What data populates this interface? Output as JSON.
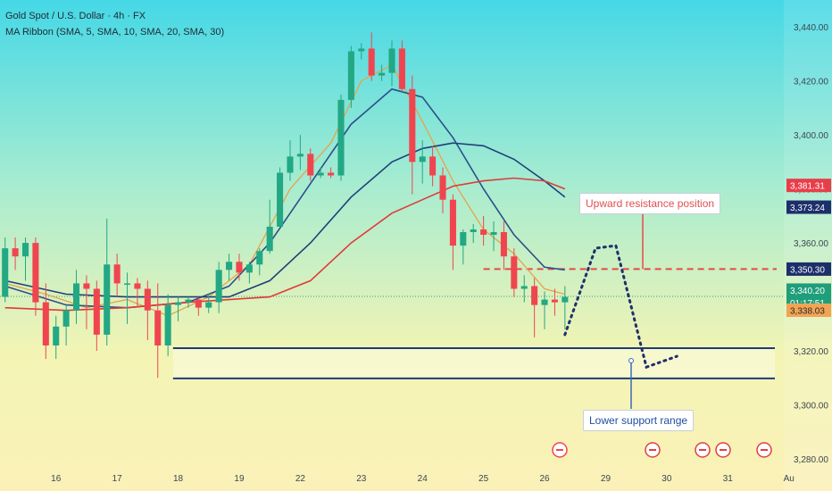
{
  "header": {
    "title": "Gold Spot / U.S. Dollar · 4h · FX",
    "indicator": "MA Ribbon (SMA, 5, SMA, 10, SMA, 20, SMA, 30)"
  },
  "annotations": {
    "resistance": "Upward resistance position",
    "support": "Lower support range"
  },
  "colors": {
    "up": "#22a884",
    "down": "#f0454f",
    "ma5": "#e7a24a",
    "ma10": "#2a4f8a",
    "ma20": "#1f3f7a",
    "ma30": "#e03a3a",
    "zone": "#1e3c78",
    "dashed": "#e84848",
    "path": "#1f2f6a"
  },
  "chart_data": {
    "type": "candlestick",
    "ylim": [
      3278,
      3450
    ],
    "y_ticks": [
      "3,440.00",
      "3,420.00",
      "3,400.00",
      "3,380.00",
      "3,360.00",
      "3,340.00",
      "3,320.00",
      "3,300.00",
      "3,280.00"
    ],
    "y_tick_values": [
      3440,
      3420,
      3400,
      3380,
      3360,
      3340,
      3320,
      3300,
      3280
    ],
    "x_labels": [
      {
        "label": "16",
        "i": 5
      },
      {
        "label": "17",
        "i": 11
      },
      {
        "label": "18",
        "i": 17
      },
      {
        "label": "19",
        "i": 23
      },
      {
        "label": "22",
        "i": 29
      },
      {
        "label": "23",
        "i": 35
      },
      {
        "label": "24",
        "i": 41
      },
      {
        "label": "25",
        "i": 47
      },
      {
        "label": "26",
        "i": 53
      },
      {
        "label": "29",
        "i": 59
      },
      {
        "label": "30",
        "i": 65
      },
      {
        "label": "31",
        "i": 71
      },
      {
        "label": "Au",
        "i": 77
      }
    ],
    "x_range": [
      -0.5,
      76.5
    ],
    "candles": [
      [
        3340,
        3362,
        3338,
        3358
      ],
      [
        3358,
        3362,
        3350,
        3355
      ],
      [
        3355,
        3362,
        3346,
        3360
      ],
      [
        3360,
        3362,
        3333,
        3338
      ],
      [
        3338,
        3345,
        3317,
        3322
      ],
      [
        3322,
        3333,
        3317,
        3329
      ],
      [
        3329,
        3337,
        3322,
        3335
      ],
      [
        3335,
        3350,
        3330,
        3345
      ],
      [
        3345,
        3348,
        3328,
        3343
      ],
      [
        3343,
        3346,
        3320,
        3326
      ],
      [
        3326,
        3369,
        3322,
        3352
      ],
      [
        3352,
        3356,
        3340,
        3345
      ],
      [
        3345,
        3349,
        3330,
        3345
      ],
      [
        3345,
        3347,
        3336,
        3343
      ],
      [
        3343,
        3346,
        3324,
        3335
      ],
      [
        3335,
        3345,
        3310,
        3322
      ],
      [
        3322,
        3341,
        3318,
        3337
      ],
      [
        3337,
        3340,
        3331,
        3338
      ],
      [
        3338,
        3340,
        3336,
        3339
      ],
      [
        3339,
        3340,
        3333,
        3336
      ],
      [
        3336,
        3341,
        3334,
        3338
      ],
      [
        3338,
        3353,
        3334,
        3350
      ],
      [
        3350,
        3356,
        3346,
        3353
      ],
      [
        3353,
        3356,
        3346,
        3349
      ],
      [
        3349,
        3353,
        3345,
        3352
      ],
      [
        3352,
        3358,
        3348,
        3357
      ],
      [
        3357,
        3376,
        3356,
        3366
      ],
      [
        3366,
        3388,
        3366,
        3386
      ],
      [
        3386,
        3398,
        3383,
        3392
      ],
      [
        3392,
        3400,
        3387,
        3393
      ],
      [
        3393,
        3395,
        3383,
        3385
      ],
      [
        3385,
        3388,
        3384,
        3386
      ],
      [
        3386,
        3388,
        3384,
        3385
      ],
      [
        3385,
        3415,
        3383,
        3413
      ],
      [
        3413,
        3433,
        3410,
        3431
      ],
      [
        3431,
        3434,
        3428,
        3432
      ],
      [
        3432,
        3438,
        3420,
        3422
      ],
      [
        3422,
        3426,
        3420,
        3423
      ],
      [
        3423,
        3435,
        3418,
        3432
      ],
      [
        3432,
        3435,
        3416,
        3417
      ],
      [
        3417,
        3422,
        3378,
        3390
      ],
      [
        3390,
        3398,
        3382,
        3392
      ],
      [
        3392,
        3396,
        3381,
        3385
      ],
      [
        3385,
        3388,
        3371,
        3376
      ],
      [
        3376,
        3378,
        3350,
        3359
      ],
      [
        3359,
        3365,
        3352,
        3364
      ],
      [
        3364,
        3367,
        3360,
        3365
      ],
      [
        3365,
        3370,
        3359,
        3363
      ],
      [
        3363,
        3368,
        3357,
        3364
      ],
      [
        3364,
        3368,
        3350,
        3355
      ],
      [
        3355,
        3358,
        3340,
        3343
      ],
      [
        3343,
        3348,
        3338,
        3344
      ],
      [
        3344,
        3347,
        3325,
        3337
      ],
      [
        3337,
        3342,
        3328,
        3339
      ],
      [
        3339,
        3343,
        3333,
        3338
      ],
      [
        3338,
        3344,
        3328,
        3340
      ]
    ],
    "ma_lines": [
      {
        "name": "SMA 5",
        "color_key": "ma5",
        "points": [
          [
            0,
            3345
          ],
          [
            4,
            3341
          ],
          [
            8,
            3336
          ],
          [
            12,
            3339
          ],
          [
            16,
            3333
          ],
          [
            20,
            3340
          ],
          [
            24,
            3352
          ],
          [
            28,
            3380
          ],
          [
            32,
            3397
          ],
          [
            35,
            3420
          ],
          [
            38,
            3426
          ],
          [
            41,
            3405
          ],
          [
            44,
            3383
          ],
          [
            47,
            3365
          ],
          [
            50,
            3356
          ],
          [
            53,
            3343
          ],
          [
            55,
            3341
          ]
        ]
      },
      {
        "name": "SMA 10",
        "color_key": "ma10",
        "points": [
          [
            0,
            3344
          ],
          [
            6,
            3337
          ],
          [
            12,
            3336
          ],
          [
            18,
            3338
          ],
          [
            22,
            3344
          ],
          [
            26,
            3360
          ],
          [
            30,
            3382
          ],
          [
            34,
            3404
          ],
          [
            38,
            3417
          ],
          [
            41,
            3414
          ],
          [
            44,
            3399
          ],
          [
            47,
            3380
          ],
          [
            50,
            3363
          ],
          [
            53,
            3351
          ],
          [
            55,
            3350
          ]
        ]
      },
      {
        "name": "SMA 20",
        "color_key": "ma20",
        "points": [
          [
            0,
            3346
          ],
          [
            6,
            3341
          ],
          [
            12,
            3340
          ],
          [
            18,
            3340
          ],
          [
            22,
            3340
          ],
          [
            26,
            3346
          ],
          [
            30,
            3360
          ],
          [
            34,
            3377
          ],
          [
            38,
            3390
          ],
          [
            41,
            3395
          ],
          [
            44,
            3397
          ],
          [
            47,
            3396
          ],
          [
            50,
            3391
          ],
          [
            53,
            3383
          ],
          [
            55,
            3377
          ]
        ]
      },
      {
        "name": "SMA 30",
        "color_key": "ma30",
        "points": [
          [
            0,
            3336
          ],
          [
            6,
            3335
          ],
          [
            12,
            3336
          ],
          [
            18,
            3338
          ],
          [
            22,
            3339
          ],
          [
            26,
            3340
          ],
          [
            30,
            3346
          ],
          [
            34,
            3360
          ],
          [
            38,
            3371
          ],
          [
            41,
            3376
          ],
          [
            44,
            3381
          ],
          [
            47,
            3383
          ],
          [
            50,
            3384
          ],
          [
            53,
            3383
          ],
          [
            55,
            3380
          ]
        ]
      }
    ],
    "support_zone": {
      "top": 3321.0,
      "bottom": 3309.8,
      "x_start": 16.5
    },
    "resistance_line": {
      "y": 3350.3,
      "x_start": 47.0
    },
    "projected_path": [
      [
        55,
        3326
      ],
      [
        58,
        3358
      ],
      [
        60,
        3359
      ],
      [
        63,
        3314
      ],
      [
        66,
        3318
      ]
    ],
    "price_badges": [
      {
        "text": "3,381.31",
        "y": 3381.31,
        "style": "red"
      },
      {
        "text": "3,373.24",
        "y": 3373.24,
        "style": "navy"
      },
      {
        "text": "3,350.30",
        "y": 3350.3,
        "style": "navy"
      },
      {
        "text": "3,340.20",
        "y": 3340.2,
        "style": "green"
      },
      {
        "text": "01:17:51",
        "y": 3340.2,
        "style": "green-sub"
      },
      {
        "text": "3,338.03",
        "y": 3338.03,
        "style": "orange"
      }
    ]
  }
}
